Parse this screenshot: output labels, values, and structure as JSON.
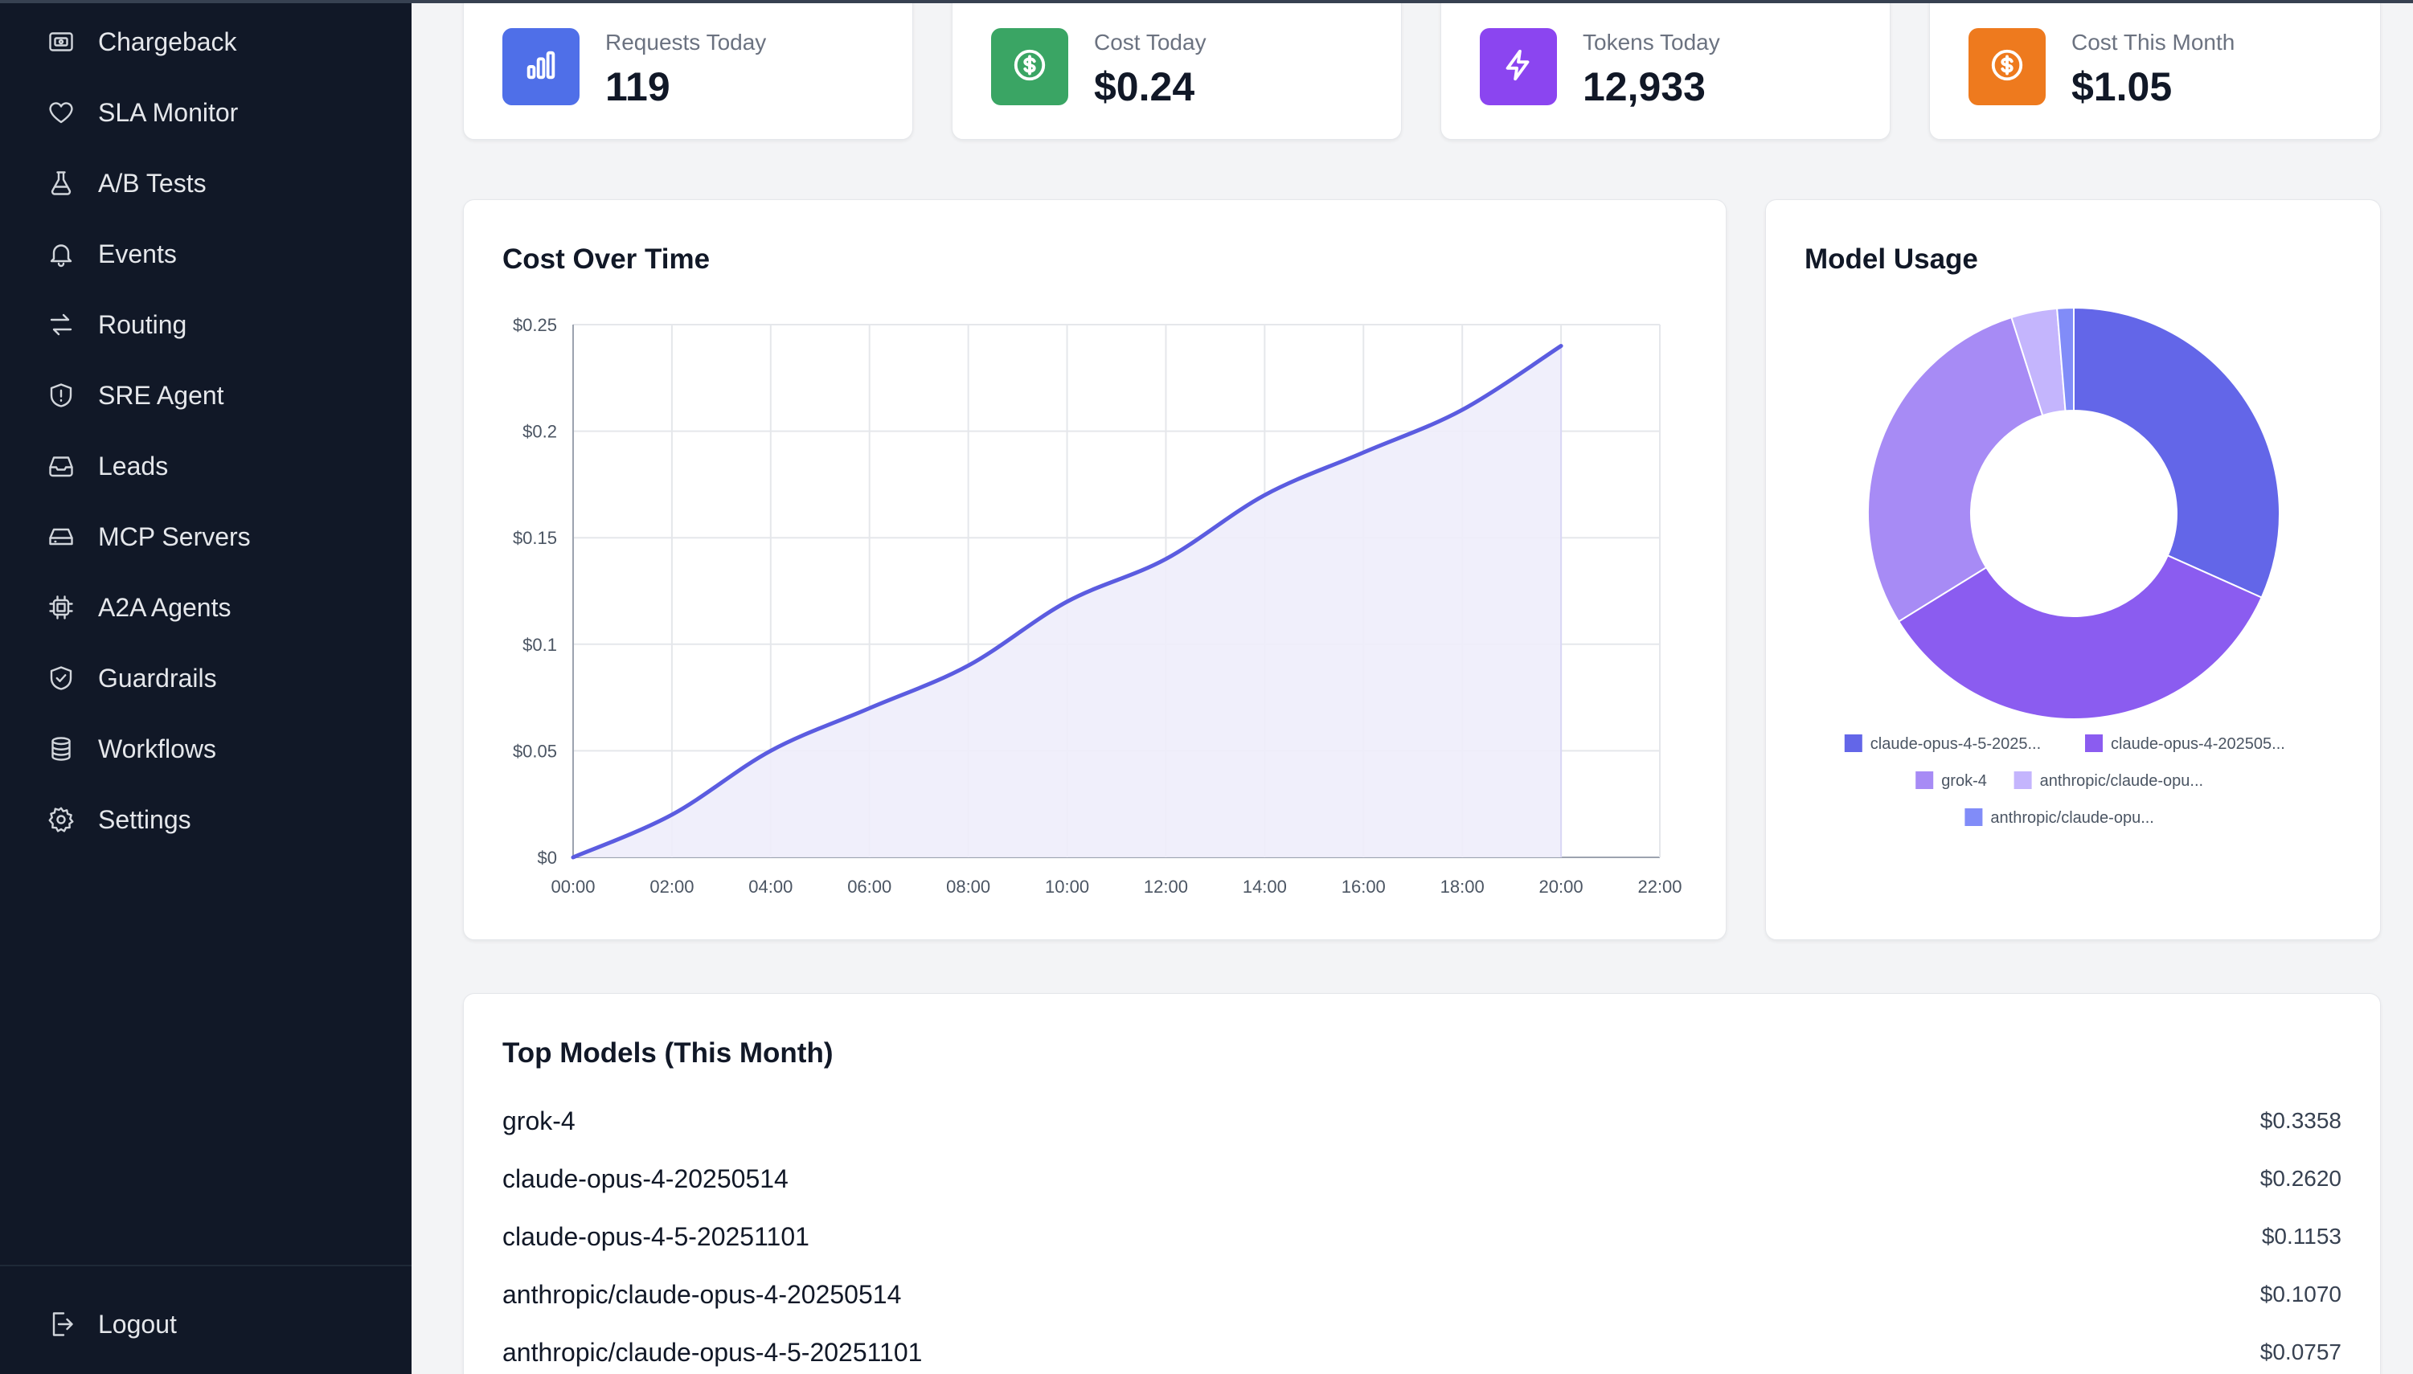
{
  "sidebar": {
    "items": [
      {
        "label": "Chargeback",
        "icon": "receipt-icon"
      },
      {
        "label": "SLA Monitor",
        "icon": "heart-icon"
      },
      {
        "label": "A/B Tests",
        "icon": "flask-icon"
      },
      {
        "label": "Events",
        "icon": "bell-icon"
      },
      {
        "label": "Routing",
        "icon": "arrows-icon"
      },
      {
        "label": "SRE Agent",
        "icon": "shield-alert-icon"
      },
      {
        "label": "Leads",
        "icon": "inbox-icon"
      },
      {
        "label": "MCP Servers",
        "icon": "server-icon"
      },
      {
        "label": "A2A Agents",
        "icon": "chip-icon"
      },
      {
        "label": "Guardrails",
        "icon": "shield-check-icon"
      },
      {
        "label": "Workflows",
        "icon": "database-icon"
      },
      {
        "label": "Settings",
        "icon": "gear-icon"
      }
    ],
    "logout_label": "Logout"
  },
  "stats": [
    {
      "label": "Requests Today",
      "value": "119",
      "color": "#4f6fe8",
      "icon": "bar-chart-icon"
    },
    {
      "label": "Cost Today",
      "value": "$0.24",
      "color": "#3aa564",
      "icon": "dollar-icon"
    },
    {
      "label": "Tokens Today",
      "value": "12,933",
      "color": "#8b45f0",
      "icon": "bolt-icon"
    },
    {
      "label": "Cost This Month",
      "value": "$1.05",
      "color": "#ee7a1e",
      "icon": "dollar-icon"
    }
  ],
  "chart_data": [
    {
      "type": "area",
      "title": "Cost Over Time",
      "x": [
        "00:00",
        "02:00",
        "04:00",
        "06:00",
        "08:00",
        "10:00",
        "12:00",
        "14:00",
        "16:00",
        "18:00",
        "20:00"
      ],
      "x_ticks": [
        "00:00",
        "02:00",
        "04:00",
        "06:00",
        "08:00",
        "10:00",
        "12:00",
        "14:00",
        "16:00",
        "18:00",
        "20:00",
        "22:00"
      ],
      "values": [
        0,
        0.02,
        0.05,
        0.07,
        0.09,
        0.12,
        0.14,
        0.17,
        0.19,
        0.21,
        0.24
      ],
      "y_ticks": [
        "$0",
        "$0.05",
        "$0.1",
        "$0.15",
        "$0.2",
        "$0.25"
      ],
      "ylim": [
        0,
        0.25
      ],
      "xlim": [
        "00:00",
        "22:00"
      ],
      "grid": true,
      "line_color": "#5b5ce0",
      "fill_color": "#eeedfb"
    },
    {
      "type": "pie",
      "title": "Model Usage",
      "legend_position": "bottom",
      "series": [
        {
          "name": "claude-opus-4-5-2025...",
          "value": 31.7,
          "color": "#6366e8"
        },
        {
          "name": "claude-opus-4-202505...",
          "value": 34.5,
          "color": "#8b5cf0"
        },
        {
          "name": "grok-4",
          "value": 28.9,
          "color": "#a78bf5"
        },
        {
          "name": "anthropic/claude-opu...",
          "value": 3.6,
          "color": "#c4b5fd"
        },
        {
          "name": "anthropic/claude-opu...",
          "value": 1.3,
          "color": "#818cf8"
        }
      ]
    }
  ],
  "top_models": {
    "title": "Top Models (This Month)",
    "rows": [
      {
        "name": "grok-4",
        "cost": "$0.3358"
      },
      {
        "name": "claude-opus-4-20250514",
        "cost": "$0.2620"
      },
      {
        "name": "claude-opus-4-5-20251101",
        "cost": "$0.1153"
      },
      {
        "name": "anthropic/claude-opus-4-20250514",
        "cost": "$0.1070"
      },
      {
        "name": "anthropic/claude-opus-4-5-20251101",
        "cost": "$0.0757"
      }
    ]
  }
}
